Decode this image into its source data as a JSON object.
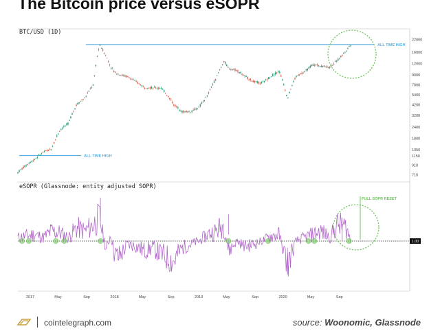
{
  "title": "The Bitcoin price versus eSOPR",
  "footer": {
    "site": "cointelegraph.com",
    "source_prefix": "source:",
    "source_names": "Woonomic, Glassnode"
  },
  "colors": {
    "price_up": "#3a9a7a",
    "price_down": "#d06a5a",
    "sopr_line": "#b066c8",
    "ath_line": "#5aaee0",
    "highlight_circle": "#6ec35a",
    "baseline": "#222222"
  },
  "chart_data": [
    {
      "type": "line",
      "title": "BTC/USD (1D)",
      "scale": "log",
      "x_ticks": [
        "2017",
        "May",
        "Sep",
        "2018",
        "May",
        "Sep",
        "2019",
        "May",
        "Sep",
        "2020",
        "May",
        "Sep"
      ],
      "y_ticks": [
        22000,
        16000,
        12000,
        9000,
        7000,
        5400,
        4200,
        3200,
        2400,
        1800,
        1350,
        1150,
        910,
        710
      ],
      "ylim": [
        620,
        24000
      ],
      "x": [
        2017.0,
        2017.1,
        2017.2,
        2017.3,
        2017.4,
        2017.5,
        2017.6,
        2017.7,
        2017.8,
        2017.9,
        2017.97,
        2018.05,
        2018.1,
        2018.15,
        2018.2,
        2018.3,
        2018.4,
        2018.5,
        2018.6,
        2018.7,
        2018.85,
        2018.95,
        2019.05,
        2019.15,
        2019.25,
        2019.35,
        2019.45,
        2019.5,
        2019.6,
        2019.7,
        2019.8,
        2019.9,
        2020.0,
        2020.1,
        2020.2,
        2020.3,
        2020.4,
        2020.5,
        2020.6,
        2020.7,
        2020.8,
        2020.9,
        2020.95
      ],
      "values": [
        750,
        900,
        1050,
        1250,
        1350,
        2200,
        2600,
        4200,
        5000,
        7000,
        19000,
        14000,
        11000,
        9500,
        9000,
        8500,
        7500,
        6500,
        6400,
        6400,
        4200,
        3500,
        3500,
        3900,
        5200,
        8000,
        12500,
        10500,
        10000,
        8500,
        7500,
        7200,
        8500,
        9800,
        4800,
        8500,
        9500,
        11500,
        11200,
        10800,
        13000,
        16500,
        19200
      ],
      "annotations": [
        {
          "text": "ALL TIME HIGH",
          "value": 19200
        },
        {
          "text": "ALL TIME HIGH",
          "value": 1150
        }
      ]
    },
    {
      "type": "line",
      "title": "eSOPR (Glassnode: entity adjusted SOPR)",
      "x_ticks": [
        "2017",
        "May",
        "Sep",
        "2018",
        "May",
        "Sep",
        "2019",
        "May",
        "Sep",
        "2020",
        "May",
        "Sep"
      ],
      "reference_value": 1.0,
      "reference_label": "1.00",
      "annotation": "FULL SOPR RESET",
      "ylim": [
        0.85,
        1.15
      ],
      "x": [
        2017.0,
        2017.1,
        2017.2,
        2017.3,
        2017.4,
        2017.5,
        2017.6,
        2017.7,
        2017.8,
        2017.9,
        2017.97,
        2018.05,
        2018.1,
        2018.15,
        2018.2,
        2018.3,
        2018.4,
        2018.5,
        2018.6,
        2018.7,
        2018.85,
        2018.95,
        2019.05,
        2019.15,
        2019.25,
        2019.35,
        2019.45,
        2019.5,
        2019.6,
        2019.7,
        2019.8,
        2019.9,
        2020.0,
        2020.1,
        2020.2,
        2020.3,
        2020.4,
        2020.5,
        2020.6,
        2020.7,
        2020.8,
        2020.9,
        2020.95
      ],
      "values": [
        1.01,
        1.015,
        1.02,
        1.01,
        1.03,
        1.025,
        1.01,
        1.04,
        1.03,
        1.05,
        1.07,
        0.97,
        1.02,
        0.96,
        0.95,
        0.99,
        0.985,
        0.97,
        0.98,
        0.96,
        0.94,
        0.98,
        0.99,
        1.0,
        1.02,
        1.03,
        1.05,
        0.97,
        1.0,
        0.985,
        0.99,
        1.0,
        1.015,
        1.02,
        0.93,
        1.0,
        1.01,
        1.02,
        1.03,
        1.01,
        1.05,
        1.04,
        1.0
      ],
      "reset_points_x": [
        2017.05,
        2017.13,
        2017.45,
        2017.55,
        2017.98,
        2019.5,
        2019.97,
        2020.45,
        2020.52,
        2020.93
      ]
    }
  ]
}
